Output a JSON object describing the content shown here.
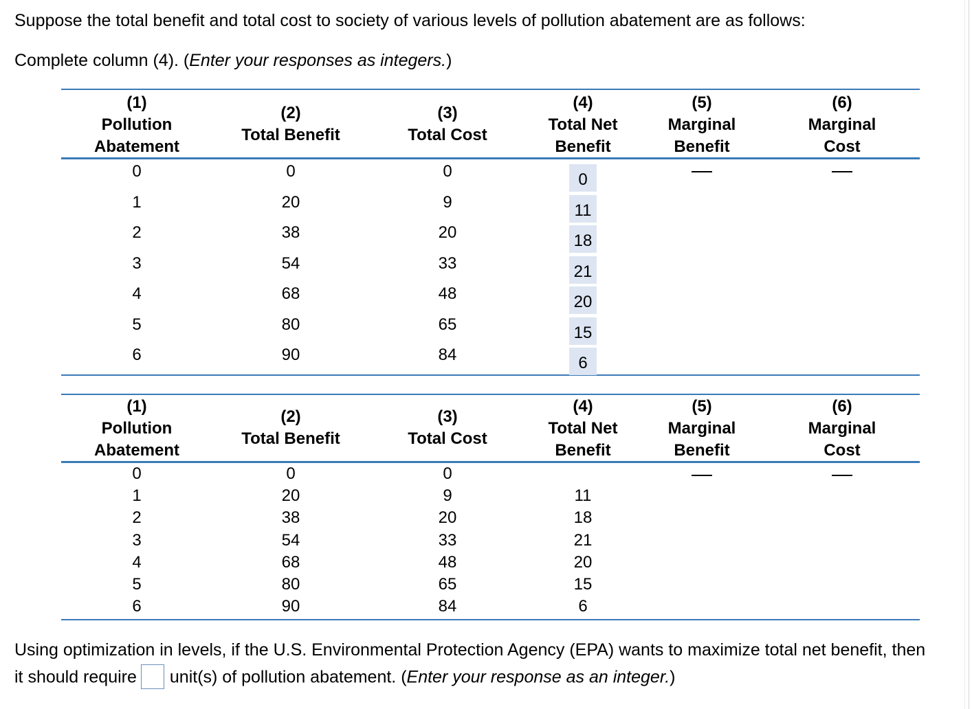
{
  "question": {
    "intro": "Suppose the total benefit and total cost to society of various levels of pollution abatement are as follows:",
    "instruction_main": "Complete column (4). (",
    "instruction_italic": "Enter your responses as integers.",
    "instruction_close": ")"
  },
  "table": {
    "headers": [
      {
        "num": "(1)",
        "l1": "Pollution",
        "l2": "Abatement"
      },
      {
        "num": "(2)",
        "l1": "Total Benefit",
        "l2": ""
      },
      {
        "num": "(3)",
        "l1": "Total Cost",
        "l2": ""
      },
      {
        "num": "(4)",
        "l1": "Total Net",
        "l2": "Benefit"
      },
      {
        "num": "(5)",
        "l1": "Marginal",
        "l2": "Benefit"
      },
      {
        "num": "(6)",
        "l1": "Marginal",
        "l2": "Cost"
      }
    ],
    "rows": [
      {
        "abatement": "0",
        "total_benefit": "0",
        "total_cost": "0",
        "net_benefit": "0"
      },
      {
        "abatement": "1",
        "total_benefit": "20",
        "total_cost": "9",
        "net_benefit": "11"
      },
      {
        "abatement": "2",
        "total_benefit": "38",
        "total_cost": "20",
        "net_benefit": "18"
      },
      {
        "abatement": "3",
        "total_benefit": "54",
        "total_cost": "33",
        "net_benefit": "21"
      },
      {
        "abatement": "4",
        "total_benefit": "68",
        "total_cost": "48",
        "net_benefit": "20"
      },
      {
        "abatement": "5",
        "total_benefit": "80",
        "total_cost": "65",
        "net_benefit": "15"
      },
      {
        "abatement": "6",
        "total_benefit": "90",
        "total_cost": "84",
        "net_benefit": "6"
      }
    ]
  },
  "followup": {
    "line1": "Using optimization in levels, if the U.S. Environmental Protection Agency (EPA) wants to maximize total net benefit, then",
    "line2_before": "it should require",
    "line2_after": "unit(s) of pollution abatement. (",
    "line2_italic": "Enter your response as an integer.",
    "line2_close": ")",
    "answer_value": ""
  }
}
